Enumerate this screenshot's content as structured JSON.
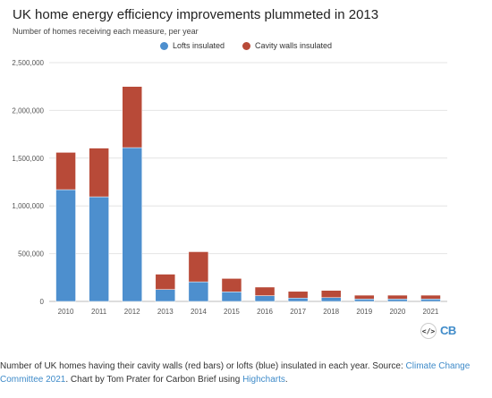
{
  "chart_data": {
    "type": "bar",
    "stacked": true,
    "title": "UK home energy efficiency improvements plummeted in 2013",
    "subtitle": "Number of homes receiving each measure, per year",
    "categories": [
      "2010",
      "2011",
      "2012",
      "2013",
      "2014",
      "2015",
      "2016",
      "2017",
      "2018",
      "2019",
      "2020",
      "2021"
    ],
    "series": [
      {
        "name": "Lofts insulated",
        "color": "#4d8fce",
        "values": [
          1170000,
          1095000,
          1610000,
          125000,
          205000,
          100000,
          60000,
          35000,
          40000,
          25000,
          25000,
          25000
        ]
      },
      {
        "name": "Cavity walls insulated",
        "color": "#b84a38",
        "values": [
          390000,
          510000,
          640000,
          160000,
          315000,
          140000,
          90000,
          70000,
          75000,
          40000,
          40000,
          40000
        ]
      }
    ],
    "ylim": [
      0,
      2500000
    ],
    "yticks": [
      "0",
      "500,000",
      "1,000,000",
      "1,500,000",
      "2,000,000",
      "2,500,000"
    ],
    "grid": true,
    "legend_position": "top-center"
  },
  "embed_icon": "</>",
  "logo": "CB",
  "footer": {
    "text1": "Number of UK homes having their cavity walls (red bars) or lofts (blue) insulated in each year. Source: ",
    "source_link": "Climate Change Committee 2021",
    "text2": ". Chart by Tom Prater for Carbon Brief using ",
    "tool_link": "Highcharts",
    "text3": "."
  }
}
